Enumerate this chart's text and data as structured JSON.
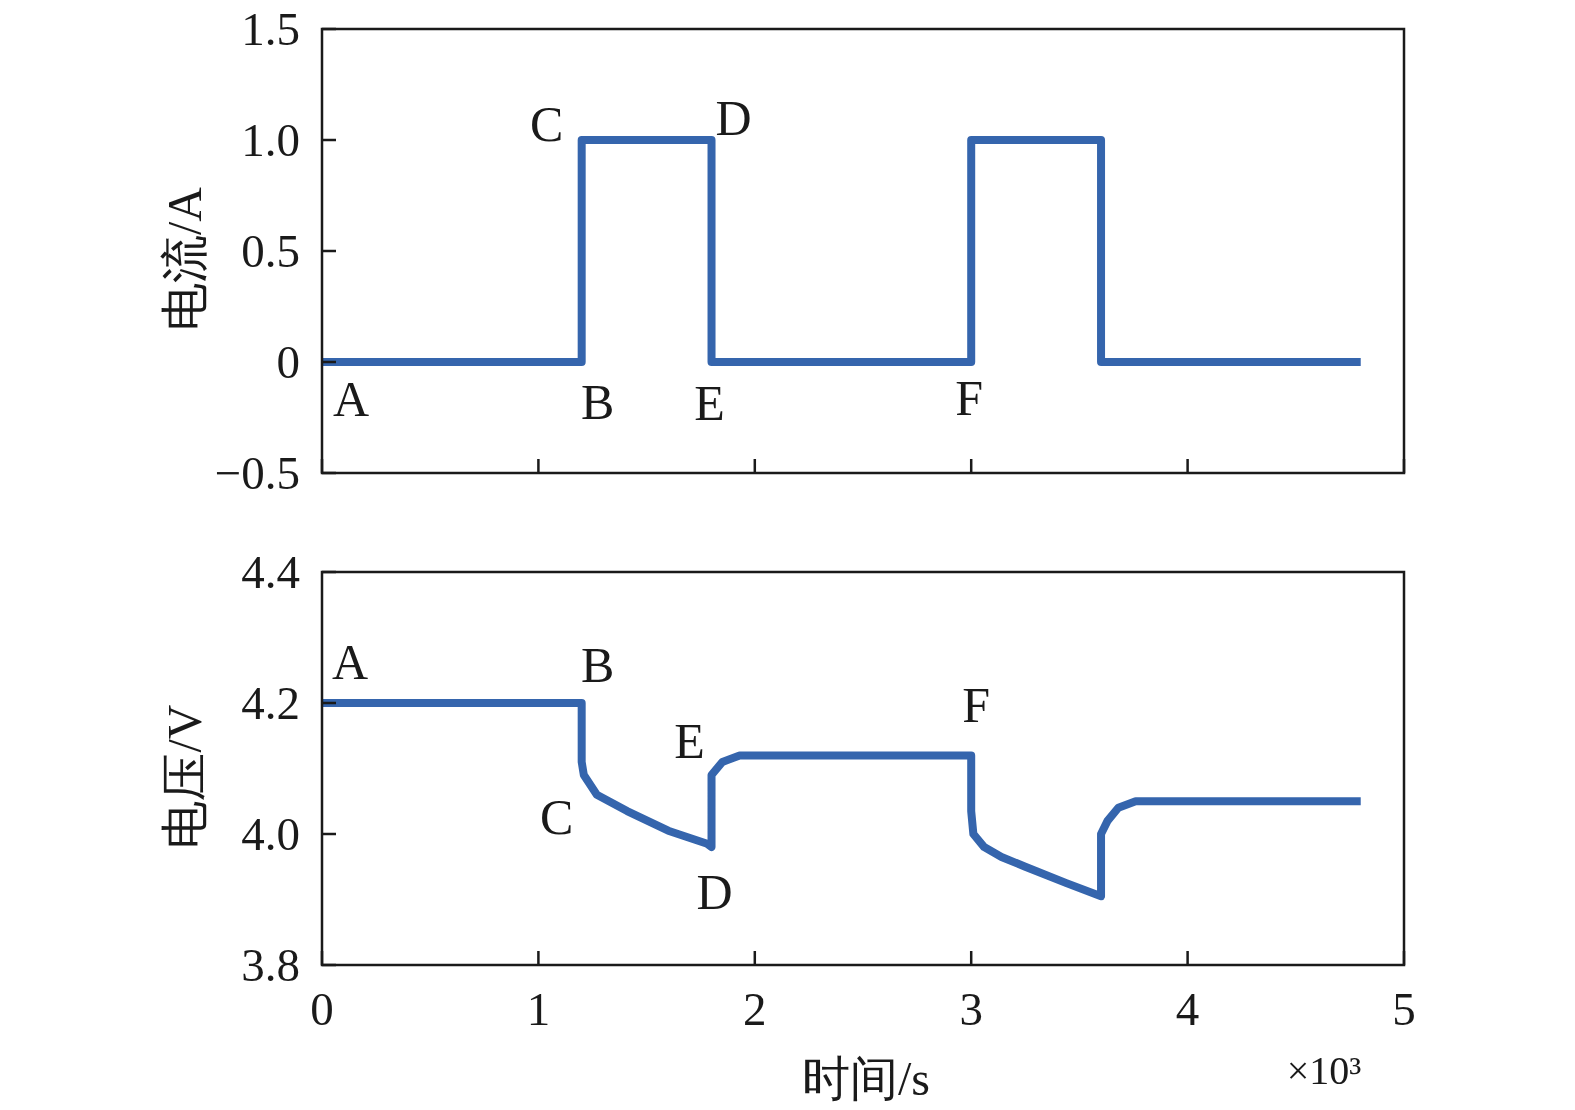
{
  "chart_data": [
    {
      "type": "line",
      "ylabel": "电流/A",
      "xlim": [
        0,
        5
      ],
      "xticks": [
        0,
        1,
        2,
        3,
        4,
        5
      ],
      "ylim": [
        -0.5,
        1.5
      ],
      "yticks": [
        {
          "value": -0.5,
          "label": "−0.5"
        },
        0,
        0.5,
        {
          "value": 1,
          "label": "1.0"
        },
        1.5
      ],
      "tick_labels": "y",
      "x": [
        0,
        1.2,
        1.2,
        1.8,
        1.8,
        3.0,
        3.0,
        3.6,
        3.6,
        4.8
      ],
      "series": [
        {
          "color": "#3565ad",
          "values": [
            0,
            0,
            1,
            1,
            0,
            0,
            1,
            1,
            0,
            0
          ]
        }
      ],
      "annotations": [
        {
          "text": "A",
          "x": 0,
          "y": 0
        },
        {
          "text": "B",
          "x": 1.2,
          "y": 0
        },
        {
          "text": "C",
          "x": 1.2,
          "y": 1
        },
        {
          "text": "D",
          "x": 1.8,
          "y": 1
        },
        {
          "text": "E",
          "x": 1.8,
          "y": 0
        },
        {
          "text": "F",
          "x": 3.0,
          "y": 0
        }
      ]
    },
    {
      "type": "line",
      "xlabel": "时间/s",
      "ylabel": "电压/V",
      "xlim": [
        0,
        5
      ],
      "xticks": [
        0,
        1,
        2,
        3,
        4,
        5
      ],
      "ylim": [
        3.8,
        4.4
      ],
      "yticks": [
        3.8,
        {
          "value": 4,
          "label": "4.0"
        },
        4.2,
        4.4
      ],
      "x": [
        0,
        1.2,
        1.2,
        1.21,
        1.27,
        1.41,
        1.6,
        1.78,
        1.8,
        1.8,
        1.85,
        1.93,
        2.1,
        3.0,
        3.0,
        3.01,
        3.06,
        3.14,
        3.25,
        3.44,
        3.6,
        3.6,
        3.63,
        3.68,
        3.76,
        3.9,
        4.8
      ],
      "series": [
        {
          "color": "#3565ad",
          "values": [
            4.2,
            4.2,
            4.11,
            4.09,
            4.06,
            4.035,
            4.005,
            3.985,
            3.98,
            4.09,
            4.11,
            4.12,
            4.12,
            4.12,
            4.035,
            4.0,
            3.98,
            3.965,
            3.95,
            3.925,
            3.905,
            4.0,
            4.02,
            4.04,
            4.05,
            4.05,
            4.05
          ]
        }
      ],
      "annotations": [
        {
          "text": "A",
          "x": 0,
          "y": 4.2
        },
        {
          "text": "B",
          "x": 1.2,
          "y": 4.2
        },
        {
          "text": "C",
          "x": 1.2,
          "y": 4.11
        },
        {
          "text": "D",
          "x": 1.8,
          "y": 3.98
        },
        {
          "text": "E",
          "x": 1.8,
          "y": 4.09
        },
        {
          "text": "F",
          "x": 3.0,
          "y": 4.12
        },
        "×10³"
      ]
    }
  ]
}
